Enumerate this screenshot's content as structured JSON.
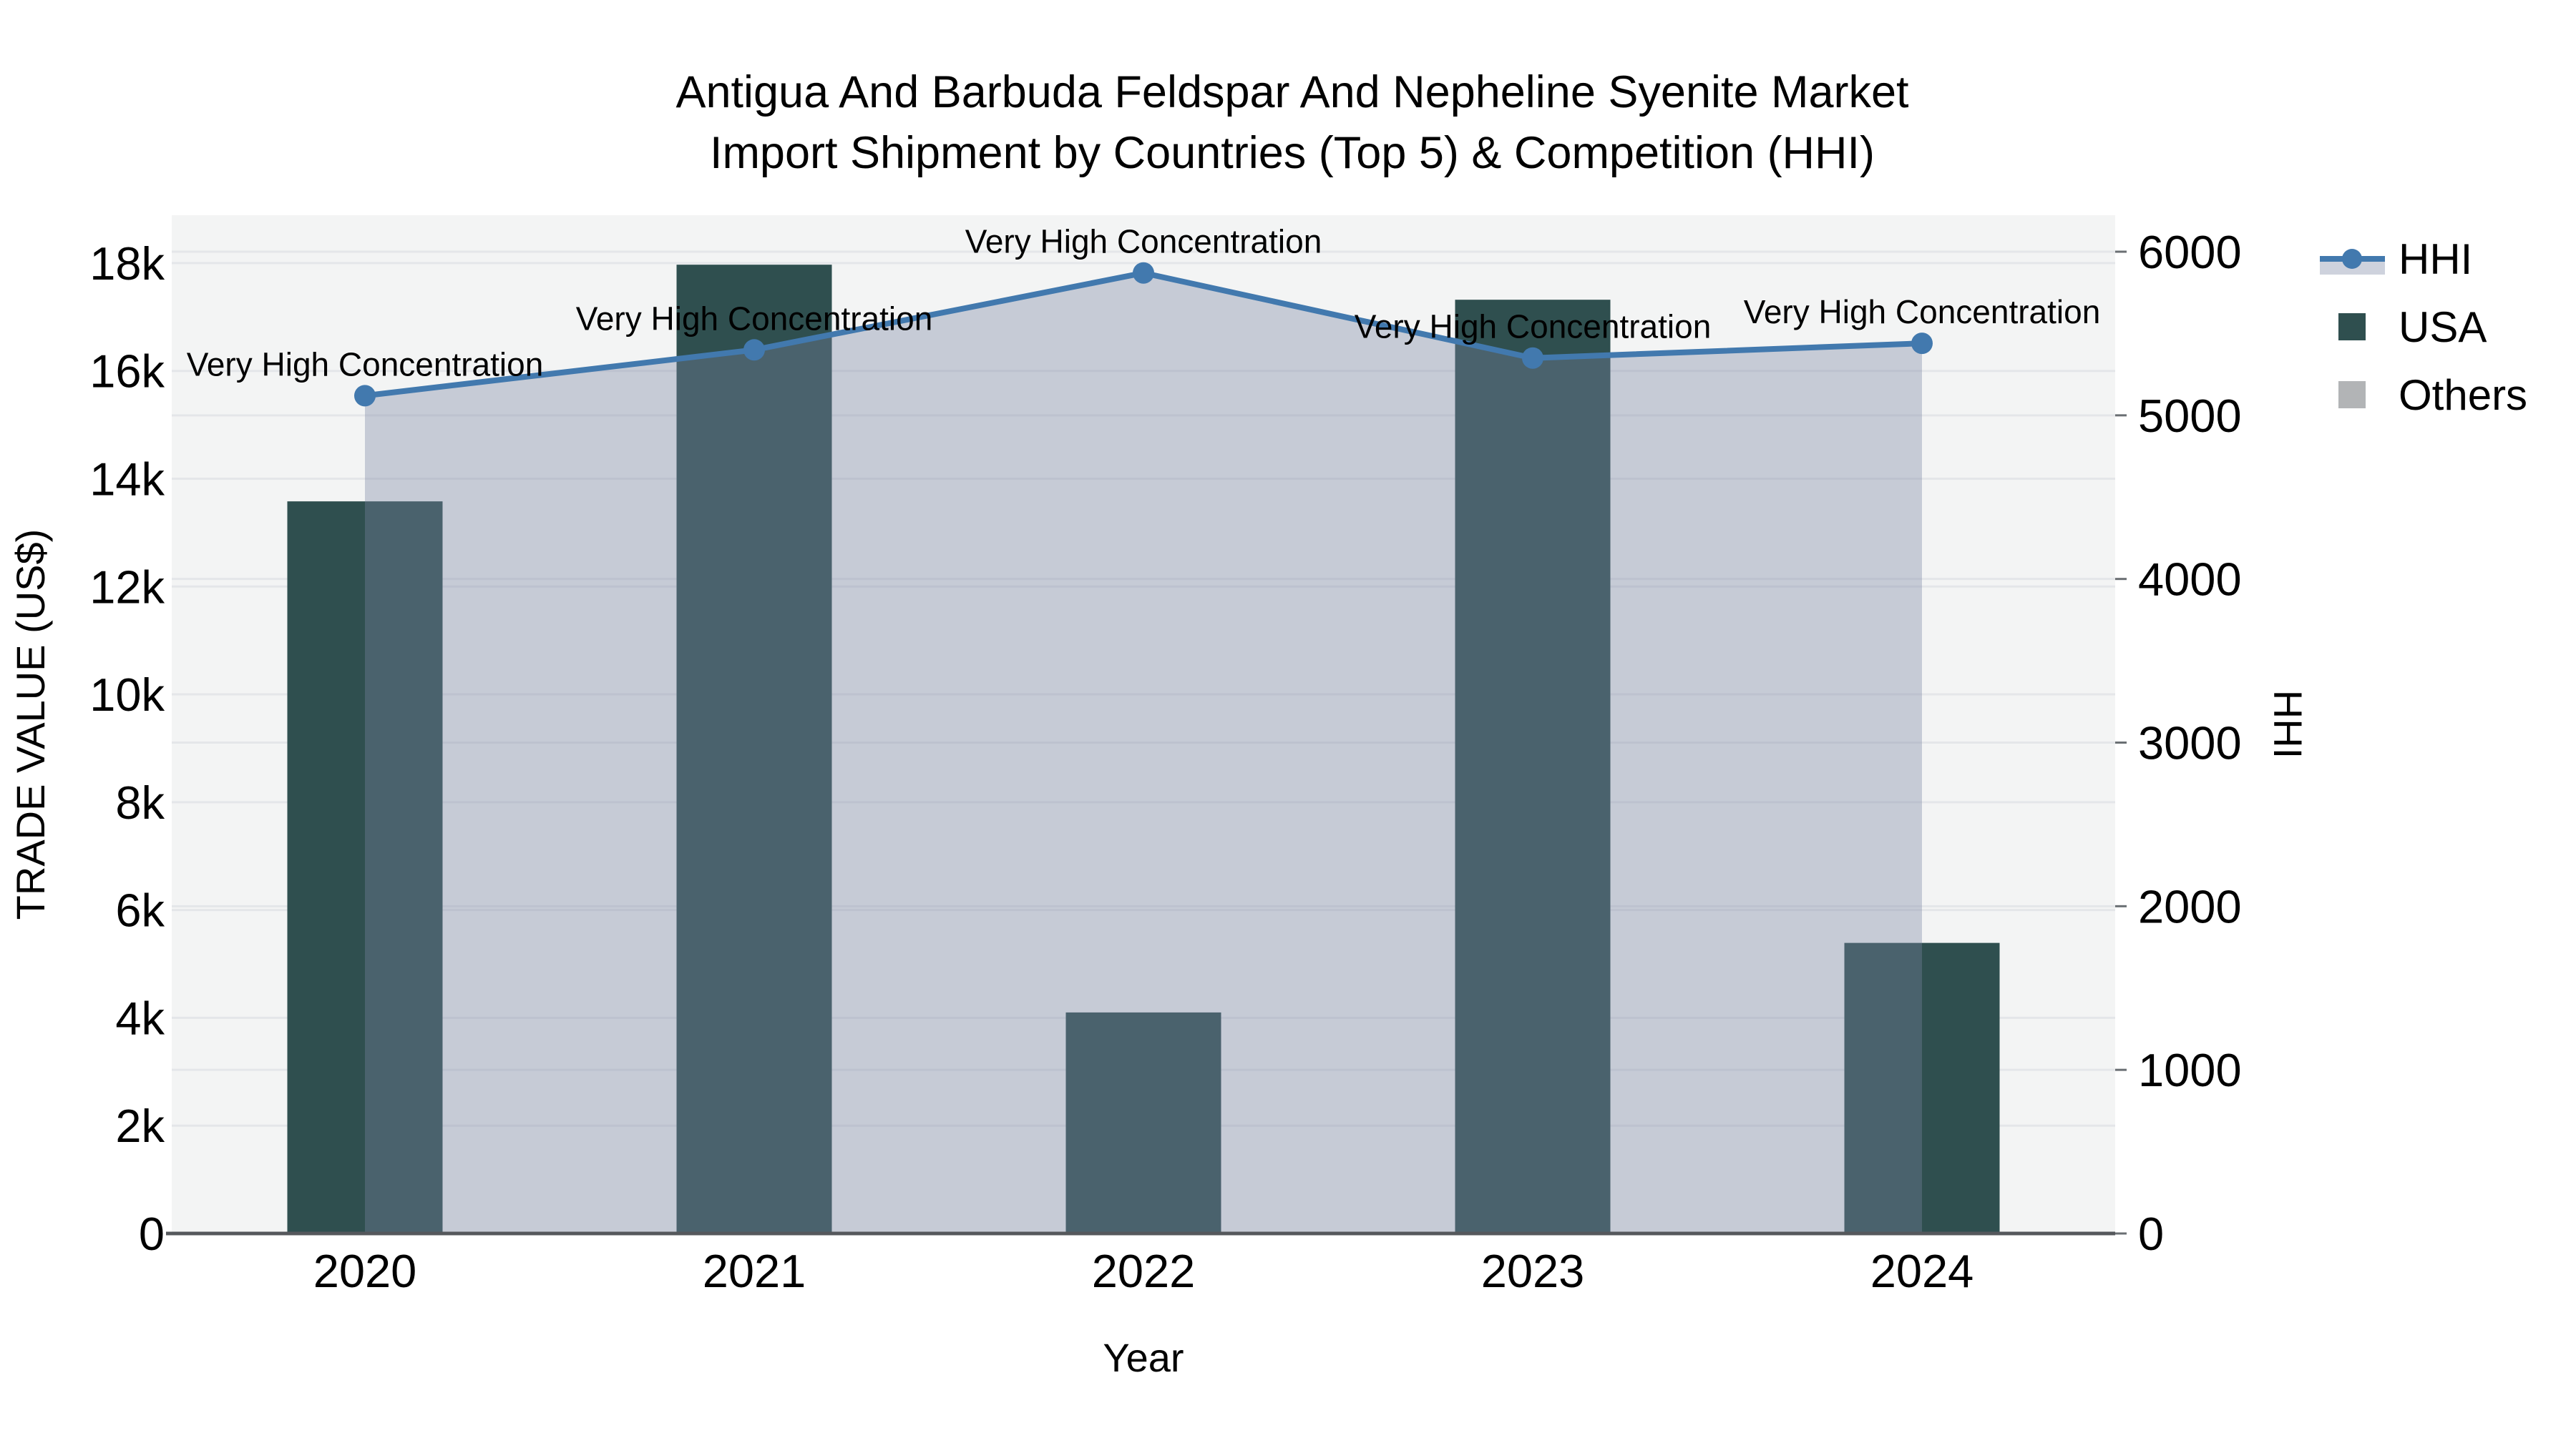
{
  "title": {
    "line1": "Antigua And Barbuda Feldspar And Nepheline Syenite Market",
    "line2": "Import Shipment by Countries (Top 5) & Competition (HHI)"
  },
  "axes": {
    "left": {
      "label": "TRADE VALUE (US$)",
      "ticks": [
        "0",
        "2k",
        "4k",
        "6k",
        "8k",
        "10k",
        "12k",
        "14k",
        "16k",
        "18k"
      ]
    },
    "right": {
      "label": "HHI",
      "ticks": [
        "0",
        "1000",
        "2000",
        "3000",
        "4000",
        "5000",
        "6000"
      ]
    },
    "x": {
      "label": "Year",
      "ticks": [
        "2020",
        "2021",
        "2022",
        "2023",
        "2024"
      ]
    }
  },
  "legend": {
    "items": [
      {
        "label": "HHI",
        "type": "line-marker"
      },
      {
        "label": "USA",
        "type": "square"
      },
      {
        "label": "Others",
        "type": "square"
      }
    ]
  },
  "colors": {
    "usa_bar": "#2f4f4f",
    "others_swatch": "#b2b4b6",
    "hhi_line": "#4279ae",
    "area_fill": "rgba(123,134,162,0.37)",
    "plot_bg": "#f3f4f4",
    "gridline": "#e4e6e9",
    "axis_line": "#55585c",
    "tick_mark": "#6a6f73"
  },
  "chart_data": {
    "type": "combo-bar-line",
    "categories": [
      "2020",
      "2021",
      "2022",
      "2023",
      "2024"
    ],
    "bar_series": [
      {
        "name": "USA",
        "axis": "left",
        "values": [
          13580,
          17970,
          4100,
          17320,
          5390
        ]
      },
      {
        "name": "Others",
        "axis": "left",
        "values": [
          0,
          0,
          0,
          0,
          0
        ]
      }
    ],
    "line_series": [
      {
        "name": "HHI",
        "axis": "right",
        "values": [
          5120,
          5400,
          5870,
          5350,
          5440
        ],
        "area_under_line": true
      }
    ],
    "point_annotations": [
      "Very High Concentration",
      "Very High Concentration",
      "Very High Concentration",
      "Very High Concentration",
      "Very High Concentration"
    ],
    "title": "Antigua And Barbuda Feldspar And Nepheline Syenite Market Import Shipment by Countries (Top 5) & Competition (HHI)",
    "xlabel": "Year",
    "ylabel_left": "TRADE VALUE (US$)",
    "ylabel_right": "HHI",
    "ylim_left": [
      0,
      18900
    ],
    "ylim_right": [
      0,
      6230
    ],
    "left_tick_step": 2000,
    "right_tick_step": 1000,
    "grid": true,
    "legend_position": "top-right-outside"
  }
}
